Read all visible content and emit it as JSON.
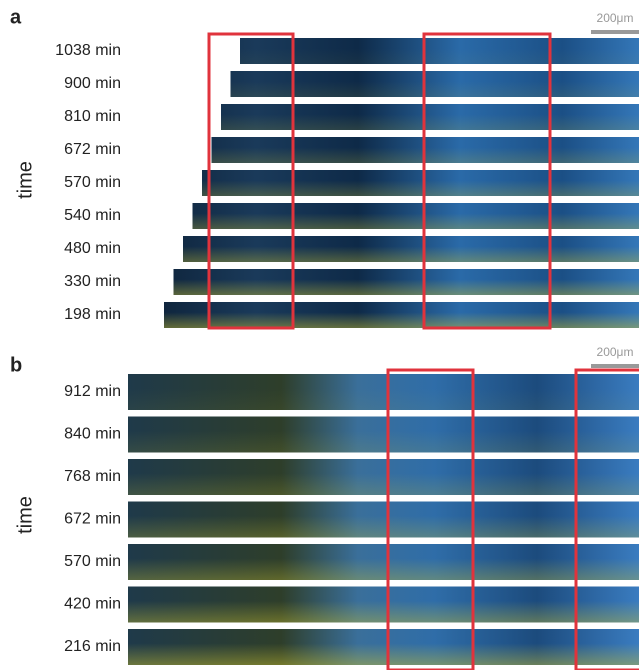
{
  "panels": [
    {
      "label": "a",
      "scale_bar": "200μm",
      "axis_label": "time",
      "rows": [
        "1038 min",
        "900 min",
        "810 min",
        "672 min",
        "570 min",
        "540 min",
        "480 min",
        "330 min",
        "198 min"
      ]
    },
    {
      "label": "b",
      "scale_bar": "200μm",
      "axis_label": "time",
      "rows": [
        "912 min",
        "840 min",
        "768 min",
        "672 min",
        "570 min",
        "420 min",
        "216 min"
      ]
    }
  ]
}
